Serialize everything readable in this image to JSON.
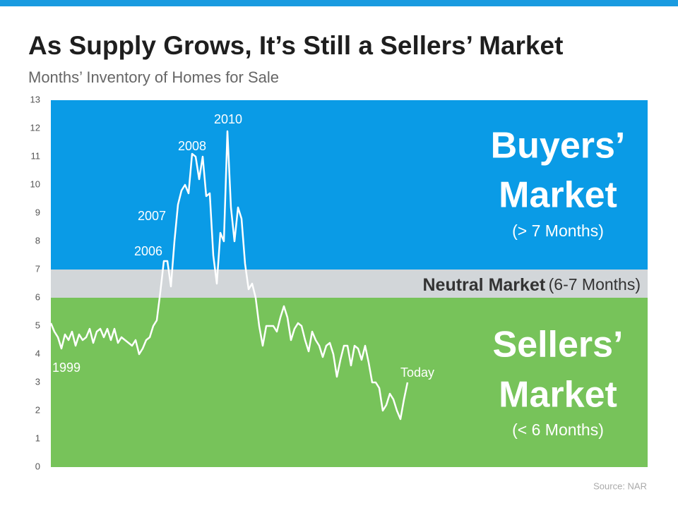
{
  "chart_data": {
    "type": "line",
    "title": "As Supply Grows, It’s Still a Sellers’ Market",
    "subtitle": "Months’ Inventory of Homes for Sale",
    "source": "Source: NAR",
    "ylim": [
      0,
      13
    ],
    "yticks": [
      0,
      1,
      2,
      3,
      4,
      5,
      6,
      7,
      8,
      9,
      10,
      11,
      12,
      13
    ],
    "color": "#ffffff",
    "values": [
      5.1,
      4.8,
      4.6,
      4.2,
      4.7,
      4.5,
      4.8,
      4.3,
      4.7,
      4.5,
      4.6,
      4.9,
      4.4,
      4.8,
      4.9,
      4.6,
      4.9,
      4.5,
      4.9,
      4.4,
      4.6,
      4.5,
      4.4,
      4.3,
      4.5,
      4.0,
      4.2,
      4.5,
      4.6,
      5.0,
      5.2,
      6.2,
      7.3,
      7.3,
      6.4,
      8.0,
      9.3,
      9.8,
      10.0,
      9.7,
      11.1,
      11.0,
      10.2,
      11.0,
      9.6,
      9.7,
      7.5,
      6.5,
      8.3,
      8.0,
      11.9,
      9.2,
      8.0,
      9.2,
      8.8,
      7.2,
      6.3,
      6.5,
      6.0,
      5.0,
      4.3,
      5.0,
      5.0,
      5.0,
      4.8,
      5.3,
      5.7,
      5.3,
      4.5,
      4.9,
      5.1,
      5.0,
      4.5,
      4.1,
      4.8,
      4.5,
      4.3,
      3.9,
      4.3,
      4.4,
      4.0,
      3.2,
      3.8,
      4.3,
      4.3,
      3.6,
      4.3,
      4.2,
      3.8,
      4.3,
      3.7,
      3.0,
      3.0,
      2.8,
      2.0,
      2.2,
      2.6,
      2.4,
      2.0,
      1.7,
      2.4,
      3.0
    ],
    "annotations": [
      "1999",
      "2006",
      "2007",
      "2008",
      "2010",
      "Today"
    ],
    "zones": [
      {
        "lines": [
          "Buyers’",
          "Market"
        ],
        "note": "(> 7 Months)",
        "min": 7,
        "max": 13,
        "color": "#0a9be6"
      },
      {
        "lines": [
          "Neutral Market"
        ],
        "note": "(6-7 Months)",
        "min": 6,
        "max": 7,
        "color": "#d2d6d9"
      },
      {
        "lines": [
          "Sellers’",
          "Market"
        ],
        "note": "(< 6 Months)",
        "min": 0,
        "max": 6,
        "color": "#77c35a"
      }
    ]
  }
}
